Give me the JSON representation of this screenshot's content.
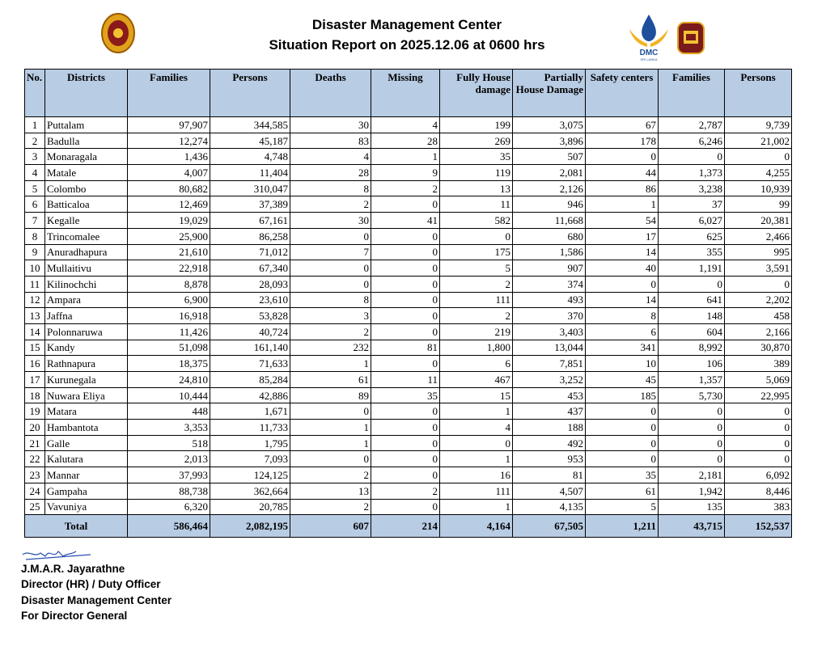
{
  "header": {
    "title": "Disaster Management Center",
    "subtitle": "Situation Report on 2025.12.06 at 0600 hrs",
    "logo_text": "DMC",
    "logo_subtext": "SRI LANKA"
  },
  "table": {
    "columns": [
      "No.",
      "Districts",
      "Families",
      "Persons",
      "Deaths",
      "Missing",
      "Fully House damage",
      "Partially House Damage",
      "Safety centers",
      "Families",
      "Persons"
    ],
    "rows": [
      [
        "1",
        "Puttalam",
        "97,907",
        "344,585",
        "30",
        "4",
        "199",
        "3,075",
        "67",
        "2,787",
        "9,739"
      ],
      [
        "2",
        "Badulla",
        "12,274",
        "45,187",
        "83",
        "28",
        "269",
        "3,896",
        "178",
        "6,246",
        "21,002"
      ],
      [
        "3",
        "Monaragala",
        "1,436",
        "4,748",
        "4",
        "1",
        "35",
        "507",
        "0",
        "0",
        "0"
      ],
      [
        "4",
        "Matale",
        "4,007",
        "11,404",
        "28",
        "9",
        "119",
        "2,081",
        "44",
        "1,373",
        "4,255"
      ],
      [
        "5",
        "Colombo",
        "80,682",
        "310,047",
        "8",
        "2",
        "13",
        "2,126",
        "86",
        "3,238",
        "10,939"
      ],
      [
        "6",
        "Batticaloa",
        "12,469",
        "37,389",
        "2",
        "0",
        "11",
        "946",
        "1",
        "37",
        "99"
      ],
      [
        "7",
        "Kegalle",
        "19,029",
        "67,161",
        "30",
        "41",
        "582",
        "11,668",
        "54",
        "6,027",
        "20,381"
      ],
      [
        "8",
        "Trincomalee",
        "25,900",
        "86,258",
        "0",
        "0",
        "0",
        "680",
        "17",
        "625",
        "2,466"
      ],
      [
        "9",
        "Anuradhapura",
        "21,610",
        "71,012",
        "7",
        "0",
        "175",
        "1,586",
        "14",
        "355",
        "995"
      ],
      [
        "10",
        "Mullaitivu",
        "22,918",
        "67,340",
        "0",
        "0",
        "5",
        "907",
        "40",
        "1,191",
        "3,591"
      ],
      [
        "11",
        "Kilinochchi",
        "8,878",
        "28,093",
        "0",
        "0",
        "2",
        "374",
        "0",
        "0",
        "0"
      ],
      [
        "12",
        "Ampara",
        "6,900",
        "23,610",
        "8",
        "0",
        "111",
        "493",
        "14",
        "641",
        "2,202"
      ],
      [
        "13",
        "Jaffna",
        "16,918",
        "53,828",
        "3",
        "0",
        "2",
        "370",
        "8",
        "148",
        "458"
      ],
      [
        "14",
        "Polonnaruwa",
        "11,426",
        "40,724",
        "2",
        "0",
        "219",
        "3,403",
        "6",
        "604",
        "2,166"
      ],
      [
        "15",
        "Kandy",
        "51,098",
        "161,140",
        "232",
        "81",
        "1,800",
        "13,044",
        "341",
        "8,992",
        "30,870"
      ],
      [
        "16",
        "Rathnapura",
        "18,375",
        "71,633",
        "1",
        "0",
        "6",
        "7,851",
        "10",
        "106",
        "389"
      ],
      [
        "17",
        "Kurunegala",
        "24,810",
        "85,284",
        "61",
        "11",
        "467",
        "3,252",
        "45",
        "1,357",
        "5,069"
      ],
      [
        "18",
        "Nuwara Eliya",
        "10,444",
        "42,886",
        "89",
        "35",
        "15",
        "453",
        "185",
        "5,730",
        "22,995"
      ],
      [
        "19",
        "Matara",
        "448",
        "1,671",
        "0",
        "0",
        "1",
        "437",
        "0",
        "0",
        "0"
      ],
      [
        "20",
        "Hambantota",
        "3,353",
        "11,733",
        "1",
        "0",
        "4",
        "188",
        "0",
        "0",
        "0"
      ],
      [
        "21",
        "Galle",
        "518",
        "1,795",
        "1",
        "0",
        "0",
        "492",
        "0",
        "0",
        "0"
      ],
      [
        "22",
        "Kalutara",
        "2,013",
        "7,093",
        "0",
        "0",
        "1",
        "953",
        "0",
        "0",
        "0"
      ],
      [
        "23",
        "Mannar",
        "37,993",
        "124,125",
        "2",
        "0",
        "16",
        "81",
        "35",
        "2,181",
        "6,092"
      ],
      [
        "24",
        "Gampaha",
        "88,738",
        "362,664",
        "13",
        "2",
        "111",
        "4,507",
        "61",
        "1,942",
        "8,446"
      ],
      [
        "25",
        "Vavuniya",
        "6,320",
        "20,785",
        "2",
        "0",
        "1",
        "4,135",
        "5",
        "135",
        "383"
      ]
    ],
    "total": {
      "label": "Total",
      "cells": [
        "586,464",
        "2,082,195",
        "607",
        "214",
        "4,164",
        "67,505",
        "1,211",
        "43,715",
        "152,537"
      ]
    }
  },
  "signature": {
    "name": "J.M.A.R. Jayarathne",
    "position": "Director (HR) / Duty Officer",
    "organization": "Disaster Management Center",
    "note": "For Director General"
  }
}
